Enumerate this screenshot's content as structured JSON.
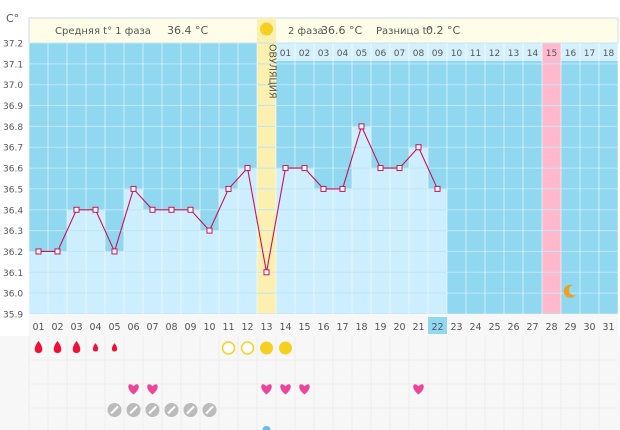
{
  "chart_data": {
    "type": "line",
    "title": "",
    "ylabel": "C°",
    "ylim": [
      35.9,
      37.2
    ],
    "y_ticks": [
      "35.9",
      "36.0",
      "36.1",
      "36.2",
      "36.3",
      "36.4",
      "36.5",
      "36.6",
      "36.7",
      "36.8",
      "36.9",
      "37.0",
      "37.1",
      "37.2"
    ],
    "x_ticks": [
      "01",
      "02",
      "03",
      "04",
      "05",
      "06",
      "07",
      "08",
      "09",
      "10",
      "11",
      "12",
      "13",
      "14",
      "15",
      "16",
      "17",
      "18",
      "19",
      "20",
      "21",
      "22",
      "23",
      "24",
      "25",
      "26",
      "27",
      "28",
      "29",
      "30",
      "31"
    ],
    "x": [
      1,
      2,
      3,
      4,
      5,
      6,
      7,
      8,
      9,
      10,
      11,
      12,
      13,
      14,
      15,
      16,
      17,
      18,
      19,
      20,
      21,
      22
    ],
    "series": [
      {
        "name": "temperature",
        "values": [
          36.2,
          36.2,
          36.4,
          36.4,
          36.2,
          36.5,
          36.4,
          36.4,
          36.4,
          36.3,
          36.5,
          36.6,
          36.1,
          36.6,
          36.6,
          36.5,
          36.5,
          36.8,
          36.6,
          36.6,
          36.7,
          36.5
        ]
      }
    ],
    "today_day": 22,
    "ovulation_day": 13,
    "ovulation_label": "ОВУЛЯЦИЯ",
    "phase1": {
      "label": "Средняя t° 1 фаза",
      "value": "36.4 °C"
    },
    "phase2": {
      "label": "2 фаза",
      "value": "36.6 °C"
    },
    "difference": {
      "label": "Разница t°",
      "value": "0.2 °C"
    },
    "cycle_day_labels": [
      "01",
      "02",
      "03",
      "04",
      "05",
      "06",
      "07",
      "08",
      "09",
      "10",
      "11",
      "12",
      "13",
      "14",
      "15",
      "16",
      "17",
      "18"
    ],
    "cycle_highlight": "15",
    "menstruation": [
      {
        "day": 1,
        "size": "large"
      },
      {
        "day": 2,
        "size": "large"
      },
      {
        "day": 3,
        "size": "large"
      },
      {
        "day": 4,
        "size": "small"
      },
      {
        "day": 5,
        "size": "small"
      }
    ],
    "ovulation_tests": [
      {
        "day": 11,
        "result": "negative"
      },
      {
        "day": 12,
        "result": "negative"
      },
      {
        "day": 13,
        "result": "positive"
      },
      {
        "day": 14,
        "result": "positive"
      }
    ],
    "hearts_days": [
      6,
      7,
      13,
      14,
      15,
      21
    ],
    "pill_days": [
      5,
      6,
      7,
      8,
      9,
      10
    ],
    "moon_day": 29,
    "colors": {
      "background": "#8fd8f0",
      "area": "#cceeff",
      "line": "#cc1155",
      "header_bg": "#fffde8",
      "ovulation_bg": "#fbf0b0",
      "highlight_pink": "#ffb8cc",
      "today_bg": "#8fd8f0",
      "drop": "#ee1133",
      "heart": "#ee4499",
      "sun": "#f5d020",
      "pill": "#bbbbbb",
      "moon": "#f0a020",
      "axis_text": "#555555"
    }
  }
}
